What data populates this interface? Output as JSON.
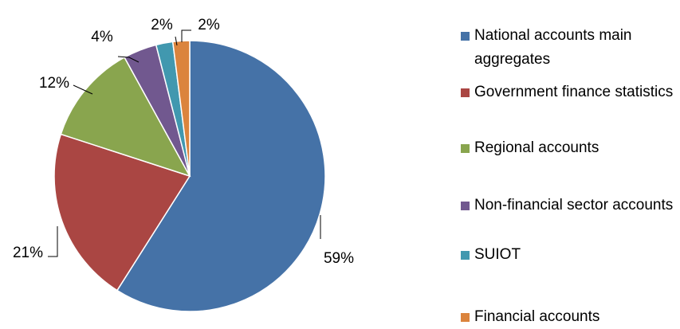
{
  "chart_data": {
    "type": "pie",
    "categories": [
      "National accounts main aggregates",
      "Government finance statistics",
      "Regional accounts",
      "Non-financial sector accounts",
      "SUIOT",
      "Financial accounts"
    ],
    "values": [
      59,
      21,
      12,
      4,
      2,
      2
    ],
    "value_labels": [
      "59%",
      "21%",
      "12%",
      "4%",
      "2%",
      "2%"
    ],
    "colors": [
      "#4572A7",
      "#AA4643",
      "#89A54E",
      "#71588F",
      "#4198AF",
      "#DB843D"
    ],
    "legend": "right"
  }
}
